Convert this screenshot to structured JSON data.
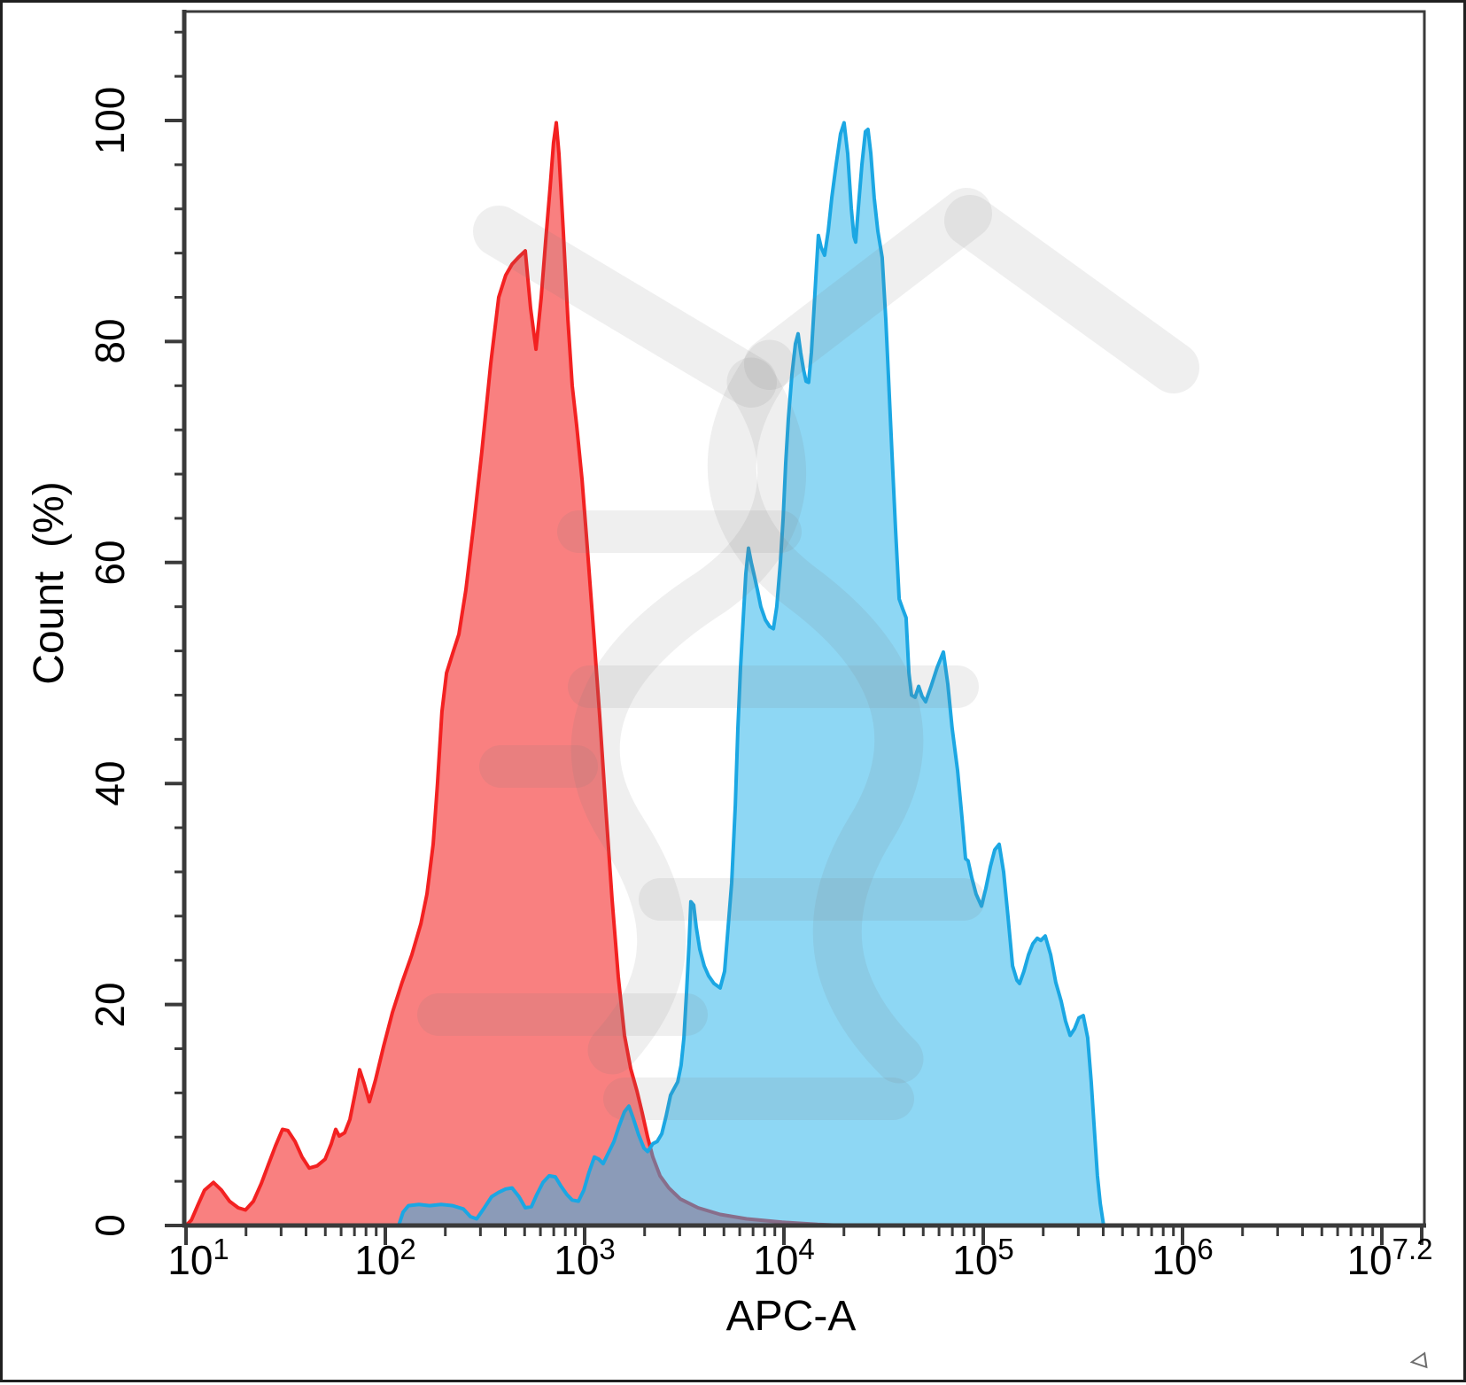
{
  "figure": {
    "xlabel": "APC-A",
    "ylabel": "Count  (%)"
  },
  "icons": {
    "corner_arrow": "◃"
  },
  "watermark_color": "rgba(125,125,125,0.12)",
  "frame_color": "#3a3a3a",
  "chart_data": {
    "type": "area",
    "subtype": "flow-cytometry-overlay-histogram",
    "title": "",
    "xlabel": "APC-A",
    "ylabel": "Count  (%)",
    "x_scale": "log10",
    "x_range_log": [
      1,
      7.2
    ],
    "ylim": [
      0,
      110
    ],
    "grid": false,
    "legend_position": "none",
    "xaxis": {
      "ticks": [
        {
          "base": "10",
          "exp": "1",
          "log": 1
        },
        {
          "base": "10",
          "exp": "2",
          "log": 2
        },
        {
          "base": "10",
          "exp": "3",
          "log": 3
        },
        {
          "base": "10",
          "exp": "4",
          "log": 4
        },
        {
          "base": "10",
          "exp": "5",
          "log": 5
        },
        {
          "base": "10",
          "exp": "6",
          "log": 6
        },
        {
          "base": "10",
          "exp": "7.2",
          "log": 7.2
        }
      ],
      "unlabeled_major_logs": [
        7
      ],
      "minor_ticks": "2-9 per decade, log spaced"
    },
    "yaxis": {
      "ticks": [
        {
          "label": "100",
          "value": 100
        },
        {
          "label": "80",
          "value": 80
        },
        {
          "label": "60",
          "value": 60
        },
        {
          "label": "40",
          "value": 40
        },
        {
          "label": "20",
          "value": 20
        },
        {
          "label": "0",
          "value": 0
        }
      ],
      "minor_tick_step": 4,
      "minor_tick_max": 108
    },
    "series": [
      {
        "id": "series-red",
        "name": "red-histogram",
        "stroke": "#f32121",
        "fill": "rgba(244,32,32,0.57)",
        "points": [
          [
            1.0,
            0
          ],
          [
            1.027,
            0.5
          ],
          [
            1.058,
            1.8
          ],
          [
            1.093,
            3.2
          ],
          [
            1.138,
            3.9
          ],
          [
            1.178,
            3.2
          ],
          [
            1.218,
            2.2
          ],
          [
            1.262,
            1.6
          ],
          [
            1.298,
            1.4
          ],
          [
            1.338,
            2.2
          ],
          [
            1.378,
            3.8
          ],
          [
            1.413,
            5.5
          ],
          [
            1.449,
            7.2
          ],
          [
            1.484,
            8.7
          ],
          [
            1.511,
            8.6
          ],
          [
            1.547,
            7.6
          ],
          [
            1.582,
            6.2
          ],
          [
            1.618,
            5.2
          ],
          [
            1.658,
            5.4
          ],
          [
            1.698,
            6.0
          ],
          [
            1.729,
            7.4
          ],
          [
            1.751,
            8.7
          ],
          [
            1.769,
            8.1
          ],
          [
            1.796,
            8.4
          ],
          [
            1.822,
            9.6
          ],
          [
            1.849,
            12.0
          ],
          [
            1.871,
            14.1
          ],
          [
            1.893,
            12.9
          ],
          [
            1.92,
            11.2
          ],
          [
            1.951,
            13.2
          ],
          [
            1.991,
            16.2
          ],
          [
            2.036,
            19.3
          ],
          [
            2.084,
            22.0
          ],
          [
            2.133,
            24.5
          ],
          [
            2.178,
            27.3
          ],
          [
            2.209,
            30.0
          ],
          [
            2.24,
            34.5
          ],
          [
            2.262,
            40.0
          ],
          [
            2.284,
            46.5
          ],
          [
            2.307,
            50.0
          ],
          [
            2.338,
            51.8
          ],
          [
            2.369,
            53.5
          ],
          [
            2.404,
            57.5
          ],
          [
            2.444,
            63.5
          ],
          [
            2.484,
            70.0
          ],
          [
            2.529,
            78.0
          ],
          [
            2.569,
            84.0
          ],
          [
            2.604,
            86.0
          ],
          [
            2.636,
            87.0
          ],
          [
            2.667,
            87.6
          ],
          [
            2.702,
            88.2
          ],
          [
            2.729,
            83.0
          ],
          [
            2.756,
            79.3
          ],
          [
            2.782,
            84.0
          ],
          [
            2.804,
            89.0
          ],
          [
            2.827,
            94.0
          ],
          [
            2.844,
            98.0
          ],
          [
            2.858,
            99.8
          ],
          [
            2.871,
            97.0
          ],
          [
            2.893,
            90.0
          ],
          [
            2.916,
            82.0
          ],
          [
            2.938,
            76.0
          ],
          [
            2.96,
            72.4
          ],
          [
            2.987,
            67.5
          ],
          [
            3.013,
            61.5
          ],
          [
            3.044,
            54.0
          ],
          [
            3.076,
            46.0
          ],
          [
            3.107,
            37.5
          ],
          [
            3.138,
            29.5
          ],
          [
            3.169,
            22.5
          ],
          [
            3.2,
            17.2
          ],
          [
            3.231,
            14.2
          ],
          [
            3.262,
            12.2
          ],
          [
            3.289,
            10.2
          ],
          [
            3.316,
            8.0
          ],
          [
            3.342,
            6.2
          ],
          [
            3.378,
            4.5
          ],
          [
            3.422,
            3.4
          ],
          [
            3.48,
            2.4
          ],
          [
            3.569,
            1.6
          ],
          [
            3.68,
            1.0
          ],
          [
            3.813,
            0.6
          ],
          [
            3.991,
            0.3
          ],
          [
            4.169,
            0.1
          ],
          [
            4.302,
            0
          ]
        ]
      },
      {
        "id": "series-blue",
        "name": "blue-histogram",
        "stroke": "#1ba7e3",
        "fill": "rgba(41,180,235,0.53)",
        "points": [
          [
            2.067,
            0
          ],
          [
            2.089,
            1.2
          ],
          [
            2.116,
            1.8
          ],
          [
            2.169,
            1.9
          ],
          [
            2.222,
            1.8
          ],
          [
            2.28,
            1.9
          ],
          [
            2.338,
            1.8
          ],
          [
            2.391,
            1.5
          ],
          [
            2.427,
            0.8
          ],
          [
            2.458,
            0.6
          ],
          [
            2.493,
            1.5
          ],
          [
            2.533,
            2.6
          ],
          [
            2.569,
            3.0
          ],
          [
            2.604,
            3.3
          ],
          [
            2.636,
            3.4
          ],
          [
            2.671,
            2.6
          ],
          [
            2.702,
            1.6
          ],
          [
            2.733,
            1.7
          ],
          [
            2.76,
            2.8
          ],
          [
            2.791,
            3.9
          ],
          [
            2.822,
            4.5
          ],
          [
            2.853,
            4.4
          ],
          [
            2.88,
            3.6
          ],
          [
            2.911,
            2.8
          ],
          [
            2.938,
            2.3
          ],
          [
            2.969,
            2.2
          ],
          [
            2.996,
            3.2
          ],
          [
            3.022,
            4.8
          ],
          [
            3.049,
            6.2
          ],
          [
            3.071,
            6.0
          ],
          [
            3.093,
            5.6
          ],
          [
            3.12,
            6.6
          ],
          [
            3.147,
            7.6
          ],
          [
            3.173,
            9.0
          ],
          [
            3.2,
            10.3
          ],
          [
            3.222,
            10.8
          ],
          [
            3.244,
            9.7
          ],
          [
            3.271,
            8.2
          ],
          [
            3.298,
            7.0
          ],
          [
            3.316,
            6.7
          ],
          [
            3.342,
            7.4
          ],
          [
            3.364,
            7.6
          ],
          [
            3.387,
            8.3
          ],
          [
            3.409,
            9.9
          ],
          [
            3.431,
            11.8
          ],
          [
            3.449,
            12.4
          ],
          [
            3.467,
            13.0
          ],
          [
            3.484,
            14.5
          ],
          [
            3.498,
            17.0
          ],
          [
            3.511,
            21.0
          ],
          [
            3.524,
            25.5
          ],
          [
            3.533,
            29.3
          ],
          [
            3.547,
            29.0
          ],
          [
            3.56,
            27.0
          ],
          [
            3.578,
            25.0
          ],
          [
            3.6,
            23.5
          ],
          [
            3.622,
            22.6
          ],
          [
            3.649,
            21.9
          ],
          [
            3.68,
            21.5
          ],
          [
            3.702,
            23.0
          ],
          [
            3.72,
            27.0
          ],
          [
            3.738,
            31.0
          ],
          [
            3.756,
            38.0
          ],
          [
            3.769,
            45.0
          ],
          [
            3.782,
            50.5
          ],
          [
            3.796,
            55.0
          ],
          [
            3.809,
            59.0
          ],
          [
            3.822,
            61.3
          ],
          [
            3.836,
            60.0
          ],
          [
            3.849,
            59.0
          ],
          [
            3.867,
            57.5
          ],
          [
            3.884,
            56.0
          ],
          [
            3.907,
            54.8
          ],
          [
            3.929,
            54.2
          ],
          [
            3.947,
            54.0
          ],
          [
            3.964,
            56.0
          ],
          [
            3.982,
            60.0
          ],
          [
            3.996,
            64.0
          ],
          [
            4.009,
            69.0
          ],
          [
            4.022,
            73.0
          ],
          [
            4.04,
            77.0
          ],
          [
            4.058,
            79.8
          ],
          [
            4.071,
            80.7
          ],
          [
            4.084,
            79.0
          ],
          [
            4.098,
            77.5
          ],
          [
            4.111,
            76.4
          ],
          [
            4.124,
            76.3
          ],
          [
            4.138,
            79.0
          ],
          [
            4.151,
            83.0
          ],
          [
            4.164,
            87.0
          ],
          [
            4.173,
            89.6
          ],
          [
            4.187,
            88.5
          ],
          [
            4.204,
            87.8
          ],
          [
            4.222,
            90.0
          ],
          [
            4.24,
            93.0
          ],
          [
            4.262,
            96.0
          ],
          [
            4.284,
            98.8
          ],
          [
            4.302,
            99.8
          ],
          [
            4.32,
            97.0
          ],
          [
            4.338,
            92.0
          ],
          [
            4.351,
            89.5
          ],
          [
            4.36,
            89.0
          ],
          [
            4.373,
            92.0
          ],
          [
            4.391,
            96.0
          ],
          [
            4.409,
            99.0
          ],
          [
            4.422,
            99.2
          ],
          [
            4.436,
            97.0
          ],
          [
            4.453,
            93.0
          ],
          [
            4.471,
            90.0
          ],
          [
            4.493,
            87.6
          ],
          [
            4.511,
            82.0
          ],
          [
            4.524,
            77.0
          ],
          [
            4.542,
            70.0
          ],
          [
            4.56,
            63.0
          ],
          [
            4.578,
            56.7
          ],
          [
            4.596,
            55.8
          ],
          [
            4.613,
            55.0
          ],
          [
            4.627,
            50.0
          ],
          [
            4.64,
            48.0
          ],
          [
            4.658,
            47.8
          ],
          [
            4.676,
            48.8
          ],
          [
            4.693,
            47.9
          ],
          [
            4.711,
            47.4
          ],
          [
            4.738,
            48.8
          ],
          [
            4.769,
            50.5
          ],
          [
            4.8,
            51.9
          ],
          [
            4.822,
            49.0
          ],
          [
            4.844,
            45.0
          ],
          [
            4.871,
            41.2
          ],
          [
            4.893,
            37.0
          ],
          [
            4.911,
            33.2
          ],
          [
            4.924,
            33.0
          ],
          [
            4.942,
            31.5
          ],
          [
            4.964,
            30.0
          ],
          [
            4.991,
            28.9
          ],
          [
            5.013,
            30.5
          ],
          [
            5.036,
            32.5
          ],
          [
            5.058,
            34.0
          ],
          [
            5.08,
            34.5
          ],
          [
            5.102,
            32.0
          ],
          [
            5.124,
            28.0
          ],
          [
            5.147,
            23.5
          ],
          [
            5.169,
            22.2
          ],
          [
            5.182,
            21.9
          ],
          [
            5.204,
            23.0
          ],
          [
            5.227,
            24.5
          ],
          [
            5.249,
            25.5
          ],
          [
            5.271,
            26.0
          ],
          [
            5.289,
            25.8
          ],
          [
            5.311,
            26.2
          ],
          [
            5.338,
            24.5
          ],
          [
            5.364,
            22.0
          ],
          [
            5.391,
            20.3
          ],
          [
            5.413,
            18.5
          ],
          [
            5.436,
            17.2
          ],
          [
            5.458,
            17.8
          ],
          [
            5.48,
            18.8
          ],
          [
            5.502,
            19.0
          ],
          [
            5.524,
            17.0
          ],
          [
            5.542,
            13.0
          ],
          [
            5.56,
            8.0
          ],
          [
            5.573,
            4.5
          ],
          [
            5.587,
            2.0
          ],
          [
            5.604,
            0
          ]
        ]
      }
    ]
  }
}
